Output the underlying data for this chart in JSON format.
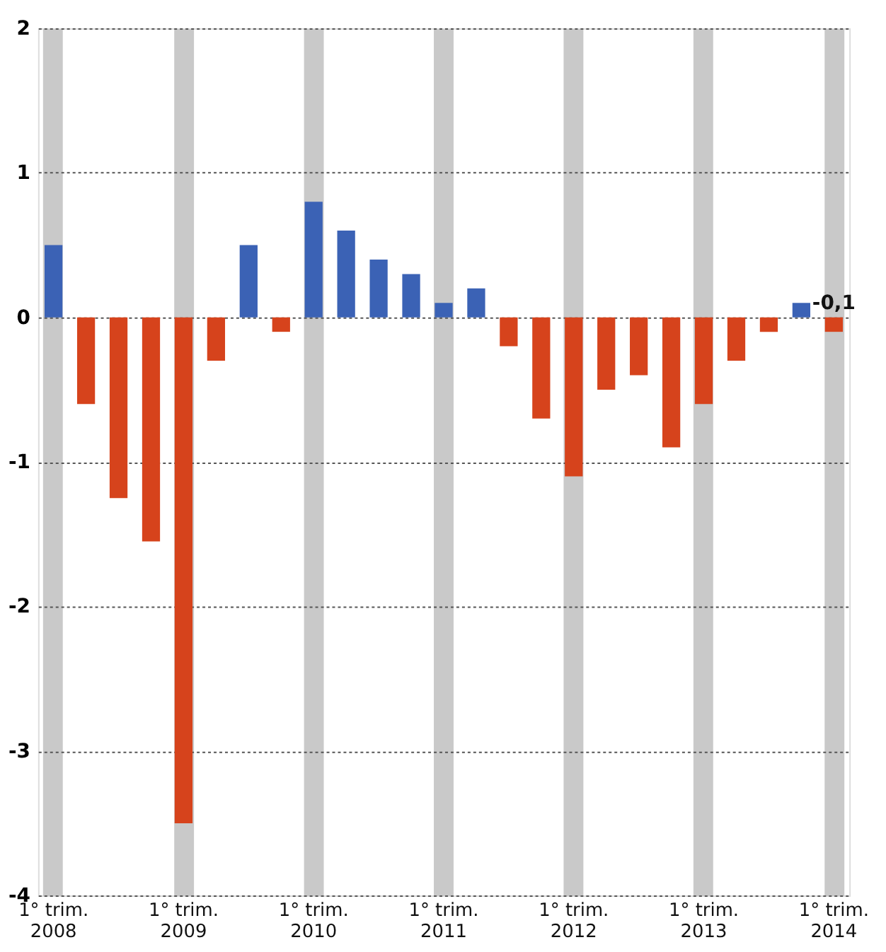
{
  "chart_data": {
    "type": "bar",
    "categories": [
      "1° trim.\n2008",
      null,
      null,
      null,
      "1° trim.\n2009",
      null,
      null,
      null,
      "1° trim.\n2010",
      null,
      null,
      null,
      "1° trim.\n2011",
      null,
      null,
      null,
      "1° trim.\n2012",
      null,
      null,
      null,
      "1° trim.\n2013",
      null,
      null,
      null,
      "1° trim.\n2014"
    ],
    "values": [
      0.5,
      -0.6,
      -1.25,
      -1.55,
      -3.5,
      -0.3,
      0.5,
      -0.1,
      0.8,
      0.6,
      0.4,
      0.3,
      0.1,
      0.2,
      -0.2,
      -0.7,
      -1.1,
      -0.5,
      -0.4,
      -0.9,
      -0.6,
      -0.3,
      -0.1,
      0.1,
      -0.1
    ],
    "colors": [
      "#3b62b5",
      "#d6431c",
      "#d6431c",
      "#d6431c",
      "#d6431c",
      "#d6431c",
      "#3b62b5",
      "#d6431c",
      "#3b62b5",
      "#3b62b5",
      "#3b62b5",
      "#3b62b5",
      "#3b62b5",
      "#3b62b5",
      "#d6431c",
      "#d6431c",
      "#d6431c",
      "#d6431c",
      "#d6431c",
      "#d6431c",
      "#d6431c",
      "#d6431c",
      "#d6431c",
      "#3b62b5",
      "#d6431c"
    ],
    "value_labels": [
      null,
      null,
      null,
      null,
      null,
      null,
      null,
      null,
      null,
      null,
      null,
      null,
      null,
      null,
      null,
      null,
      null,
      null,
      null,
      null,
      null,
      null,
      null,
      null,
      "-0,1"
    ],
    "ylim": [
      -4,
      2
    ],
    "yticks": [
      -4,
      -3,
      -2,
      -1,
      0,
      1,
      2
    ],
    "grid": true
  }
}
